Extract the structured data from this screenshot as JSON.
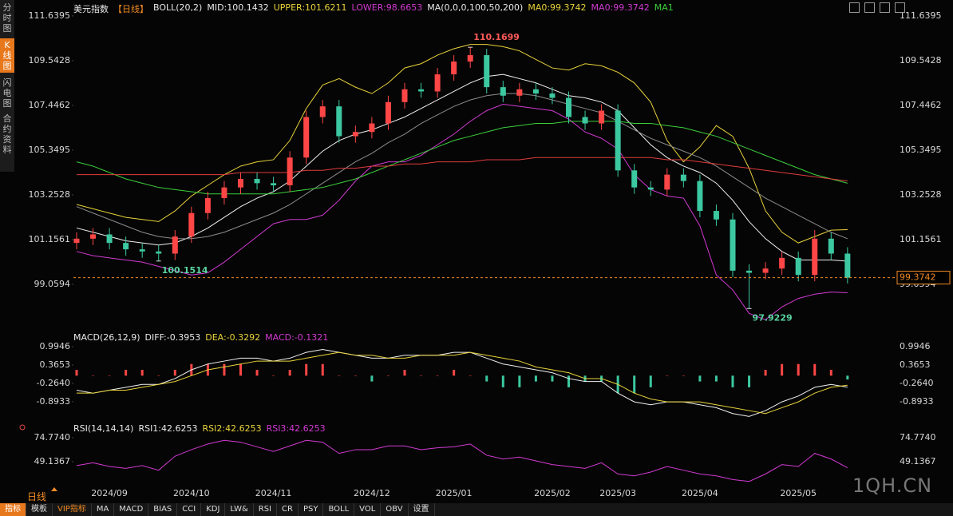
{
  "chart_data": [
    {
      "type": "candlestick",
      "header": [
        {
          "text": "美元指数",
          "color": "#e8e8e8"
        },
        {
          "text": "【日线】",
          "color": "#f08a24"
        },
        {
          "text": "BOLL(20,2)",
          "color": "#e8e8e8"
        },
        {
          "text": "MID:100.1432",
          "color": "#e8e8e8"
        },
        {
          "text": "UPPER:101.6211",
          "color": "#e8d23a"
        },
        {
          "text": "LOWER:98.6653",
          "color": "#d23ad2"
        },
        {
          "text": "MA(0,0,0,100,50,200)",
          "color": "#e8e8e8"
        },
        {
          "text": "MA0:99.3742",
          "color": "#e8d23a"
        },
        {
          "text": "MA0:99.3742",
          "color": "#d23ad2"
        },
        {
          "text": "MA1",
          "color": "#3ccf3c"
        }
      ],
      "categories": [
        null,
        null,
        "2024/09",
        null,
        null,
        null,
        null,
        "2024/10",
        null,
        null,
        null,
        null,
        "2024/11",
        null,
        null,
        null,
        null,
        null,
        "2024/12",
        null,
        null,
        null,
        null,
        "2025/01",
        null,
        null,
        null,
        null,
        null,
        "2025/02",
        null,
        null,
        null,
        "2025/03",
        null,
        null,
        null,
        null,
        "2025/04",
        null,
        null,
        null,
        null,
        null,
        "2025/05",
        null,
        null,
        null
      ],
      "open": [
        101.0,
        101.2,
        101.4,
        101.0,
        100.7,
        100.6,
        100.5,
        101.3,
        102.4,
        103.1,
        103.6,
        104.0,
        103.8,
        103.7,
        105.0,
        106.9,
        107.4,
        106.0,
        106.2,
        106.6,
        107.6,
        108.2,
        108.1,
        108.9,
        109.5,
        109.8,
        108.3,
        107.9,
        108.2,
        108.0,
        107.8,
        106.9,
        106.6,
        107.2,
        104.4,
        103.6,
        103.5,
        104.2,
        103.9,
        102.5,
        102.1,
        99.7,
        99.6,
        99.8,
        100.3,
        99.5,
        101.2,
        100.5
      ],
      "high": [
        101.5,
        101.7,
        101.7,
        101.3,
        101.0,
        100.9,
        101.6,
        102.7,
        103.4,
        103.9,
        104.3,
        104.3,
        104.1,
        105.3,
        107.2,
        107.7,
        107.7,
        106.5,
        106.9,
        107.9,
        108.5,
        108.5,
        109.2,
        109.8,
        110.1699,
        110.1,
        108.6,
        108.5,
        108.5,
        108.3,
        108.1,
        107.2,
        107.5,
        107.5,
        104.7,
        103.9,
        104.5,
        104.5,
        104.2,
        102.8,
        102.4,
        100.0,
        100.1,
        100.6,
        100.6,
        101.6,
        101.5,
        100.8
      ],
      "low": [
        100.7,
        100.9,
        100.7,
        100.4,
        100.3,
        100.1514,
        100.2,
        101.0,
        102.1,
        102.8,
        103.3,
        103.5,
        103.4,
        103.4,
        104.7,
        106.6,
        105.7,
        105.7,
        105.9,
        106.3,
        107.3,
        107.8,
        107.8,
        108.6,
        109.2,
        108.0,
        107.6,
        107.6,
        107.7,
        107.5,
        106.6,
        106.3,
        106.3,
        104.1,
        103.3,
        103.2,
        103.2,
        103.6,
        102.2,
        101.8,
        99.4,
        97.9229,
        99.3,
        99.5,
        99.2,
        99.2,
        100.2,
        99.1
      ],
      "close": [
        101.2,
        101.4,
        101.0,
        100.7,
        100.6,
        100.5,
        101.3,
        102.4,
        103.1,
        103.6,
        104.0,
        103.8,
        103.7,
        105.0,
        106.9,
        107.4,
        106.0,
        106.2,
        106.6,
        107.6,
        108.2,
        108.1,
        108.9,
        109.5,
        109.8,
        108.3,
        107.9,
        108.2,
        108.0,
        107.8,
        106.9,
        106.6,
        107.2,
        104.4,
        103.6,
        103.5,
        104.2,
        103.9,
        102.5,
        102.1,
        99.7,
        99.6,
        99.8,
        100.3,
        99.5,
        101.2,
        100.5,
        99.3742
      ],
      "up_color": "#ff4646",
      "down_color": "#3cc8a0",
      "last_price_color": "#f08a24",
      "series": [
        {
          "color": "#e8d23a",
          "values": [
            102.8,
            102.6,
            102.4,
            102.2,
            102.1,
            102.0,
            102.5,
            103.2,
            103.7,
            104.2,
            104.6,
            104.8,
            104.9,
            105.8,
            107.3,
            108.4,
            108.7,
            108.3,
            108.0,
            108.5,
            109.2,
            109.4,
            109.8,
            110.1,
            110.3,
            110.3,
            110.2,
            110.0,
            109.6,
            109.2,
            109.1,
            109.4,
            109.3,
            109.0,
            108.5,
            107.6,
            105.8,
            104.8,
            105.5,
            106.5,
            106.0,
            104.5,
            102.5,
            101.5,
            101.0,
            101.3,
            101.6,
            101.6211
          ]
        },
        {
          "color": "#f0f0f0",
          "values": [
            101.7,
            101.5,
            101.3,
            101.1,
            101.0,
            100.9,
            101.0,
            101.3,
            101.7,
            102.2,
            102.7,
            103.1,
            103.4,
            103.9,
            104.6,
            105.3,
            105.8,
            106.1,
            106.3,
            106.6,
            106.9,
            107.3,
            107.7,
            108.1,
            108.5,
            108.8,
            108.9,
            108.7,
            108.5,
            108.2,
            107.9,
            107.8,
            107.6,
            107.2,
            106.4,
            105.6,
            105.0,
            104.6,
            104.3,
            103.8,
            103.0,
            102.0,
            101.2,
            100.6,
            100.2,
            100.2,
            100.2,
            100.1432
          ]
        },
        {
          "color": "#d23ad2",
          "values": [
            100.6,
            100.4,
            100.3,
            100.2,
            100.1,
            99.9,
            99.7,
            99.5,
            99.6,
            100.1,
            100.7,
            101.3,
            101.9,
            102.1,
            102.1,
            102.3,
            103.0,
            103.9,
            104.6,
            104.8,
            104.8,
            105.1,
            105.6,
            106.1,
            106.7,
            107.2,
            107.5,
            107.4,
            107.3,
            107.2,
            106.8,
            106.2,
            105.9,
            105.4,
            104.2,
            103.5,
            103.2,
            103.1,
            101.8,
            99.5,
            98.8,
            97.7,
            97.4,
            98.0,
            98.4,
            98.6,
            98.7,
            98.6653
          ]
        },
        {
          "color": "#8c8c8c",
          "values": [
            102.7,
            102.4,
            102.1,
            101.8,
            101.5,
            101.3,
            101.2,
            101.2,
            101.3,
            101.5,
            101.8,
            102.1,
            102.4,
            102.8,
            103.3,
            103.8,
            104.3,
            104.8,
            105.2,
            105.7,
            106.1,
            106.6,
            107.0,
            107.4,
            107.7,
            107.9,
            108.0,
            108.0,
            107.9,
            107.7,
            107.5,
            107.3,
            107.1,
            106.7,
            106.3,
            105.9,
            105.6,
            105.3,
            105.0,
            104.6,
            104.1,
            103.6,
            103.1,
            102.7,
            102.3,
            101.9,
            101.5,
            101.2
          ]
        },
        {
          "color": "#3ccf3c",
          "values": [
            104.8,
            104.6,
            104.3,
            104.0,
            103.8,
            103.6,
            103.5,
            103.4,
            103.3,
            103.3,
            103.3,
            103.3,
            103.3,
            103.4,
            103.5,
            103.6,
            103.8,
            104.0,
            104.3,
            104.6,
            104.9,
            105.2,
            105.5,
            105.8,
            106.0,
            106.2,
            106.4,
            106.5,
            106.6,
            106.6,
            106.7,
            106.7,
            106.7,
            106.7,
            106.6,
            106.6,
            106.5,
            106.4,
            106.2,
            106.0,
            105.7,
            105.4,
            105.1,
            104.8,
            104.5,
            104.2,
            104.0,
            103.8
          ]
        },
        {
          "color": "#e23c3c",
          "values": [
            104.2,
            104.2,
            104.2,
            104.2,
            104.2,
            104.2,
            104.2,
            104.2,
            104.2,
            104.2,
            104.3,
            104.3,
            104.3,
            104.3,
            104.4,
            104.4,
            104.5,
            104.5,
            104.6,
            104.6,
            104.7,
            104.7,
            104.8,
            104.8,
            104.8,
            104.9,
            104.9,
            104.9,
            105.0,
            105.0,
            105.0,
            105.0,
            105.0,
            105.0,
            105.0,
            105.0,
            104.9,
            104.9,
            104.8,
            104.7,
            104.6,
            104.5,
            104.4,
            104.3,
            104.2,
            104.1,
            104.0,
            103.9
          ]
        }
      ],
      "ylim": [
        96.85,
        112.01
      ],
      "yticks": [
        111.6395,
        109.5428,
        107.4462,
        105.3495,
        103.2528,
        101.1561,
        99.0594
      ]
    },
    {
      "type": "line",
      "header": [
        {
          "text": "MACD(26,12,9)",
          "color": "#e8e8e8"
        },
        {
          "text": "DIFF:-0.3953",
          "color": "#e8e8e8"
        },
        {
          "text": "DEA:-0.3292",
          "color": "#e8d23a"
        },
        {
          "text": "MACD:-0.1321",
          "color": "#d23ad2"
        }
      ],
      "series": [
        {
          "kind": "bar",
          "color": "#ff4646",
          "negative_color": "#3cc8a0",
          "values": [
            0.2,
            0.0,
            0.0,
            0.2,
            0.2,
            0.0,
            0.2,
            0.4,
            0.4,
            0.4,
            0.4,
            0.2,
            0.0,
            0.2,
            0.4,
            0.4,
            0.0,
            0.0,
            -0.2,
            0.0,
            0.2,
            0.0,
            0.0,
            0.2,
            0.0,
            -0.2,
            -0.4,
            -0.4,
            -0.2,
            -0.2,
            -0.4,
            -0.2,
            -0.2,
            -0.6,
            -0.6,
            -0.4,
            0.0,
            0.0,
            -0.2,
            -0.2,
            -0.4,
            -0.4,
            0.2,
            0.4,
            0.4,
            0.4,
            0.2,
            -0.1321
          ]
        },
        {
          "color": "#f0f0f0",
          "values": [
            -0.5,
            -0.6,
            -0.5,
            -0.4,
            -0.3,
            -0.3,
            -0.1,
            0.2,
            0.4,
            0.5,
            0.6,
            0.6,
            0.5,
            0.6,
            0.8,
            0.9,
            0.8,
            0.7,
            0.6,
            0.6,
            0.7,
            0.7,
            0.7,
            0.8,
            0.8,
            0.6,
            0.4,
            0.3,
            0.2,
            0.1,
            -0.1,
            -0.2,
            -0.2,
            -0.6,
            -0.9,
            -1.0,
            -0.9,
            -0.9,
            -1.0,
            -1.1,
            -1.3,
            -1.4,
            -1.2,
            -0.9,
            -0.7,
            -0.4,
            -0.3,
            -0.3953
          ]
        },
        {
          "color": "#e8d23a",
          "values": [
            -0.6,
            -0.6,
            -0.5,
            -0.5,
            -0.4,
            -0.3,
            -0.2,
            0.0,
            0.2,
            0.3,
            0.4,
            0.5,
            0.5,
            0.5,
            0.6,
            0.7,
            0.8,
            0.7,
            0.7,
            0.6,
            0.6,
            0.7,
            0.7,
            0.7,
            0.8,
            0.7,
            0.6,
            0.5,
            0.3,
            0.2,
            0.1,
            -0.1,
            -0.1,
            -0.3,
            -0.6,
            -0.8,
            -0.9,
            -0.9,
            -0.9,
            -1.0,
            -1.1,
            -1.2,
            -1.3,
            -1.1,
            -0.9,
            -0.6,
            -0.4,
            -0.3292
          ]
        }
      ],
      "ylim": [
        -1.5,
        1.16
      ],
      "yticks": [
        0.9946,
        0.3653,
        {
          "value": -0.264,
          "label": "-0.2640"
        },
        -0.8933
      ]
    },
    {
      "type": "line",
      "header": [
        {
          "text": "RSI(14,14,14)",
          "color": "#e8e8e8"
        },
        {
          "text": "RSI1:42.6253",
          "color": "#e8e8e8"
        },
        {
          "text": "RSI2:42.6253",
          "color": "#e8d23a"
        },
        {
          "text": "RSI3:42.6253",
          "color": "#d23ad2"
        }
      ],
      "series": [
        {
          "color": "#d23ad2",
          "values": [
            45,
            48,
            44,
            42,
            45,
            40,
            55,
            62,
            68,
            72,
            70,
            65,
            60,
            66,
            72,
            70,
            58,
            62,
            62,
            66,
            66,
            62,
            64,
            65,
            68,
            56,
            52,
            54,
            50,
            46,
            44,
            42,
            48,
            36,
            34,
            38,
            44,
            40,
            36,
            34,
            30,
            28,
            36,
            46,
            44,
            58,
            52,
            42.6253
          ]
        }
      ],
      "ylim": [
        23.5,
        81.6
      ],
      "yticks": [
        {
          "value": 74.774,
          "label": "74.7740"
        },
        49.1367
      ]
    }
  ],
  "sidebar": [
    "分时图",
    "K线图",
    "闪电图",
    "合约资料"
  ],
  "period": "日线",
  "toolbar": [
    "指标",
    "模板",
    "VIP指标",
    "MA",
    "MACD",
    "BIAS",
    "CCI",
    "KDJ",
    "LW&",
    "RSI",
    "CR",
    "PSY",
    "BOLL",
    "VOL",
    "OBV",
    "设置"
  ],
  "watermark": "1QH.CN"
}
